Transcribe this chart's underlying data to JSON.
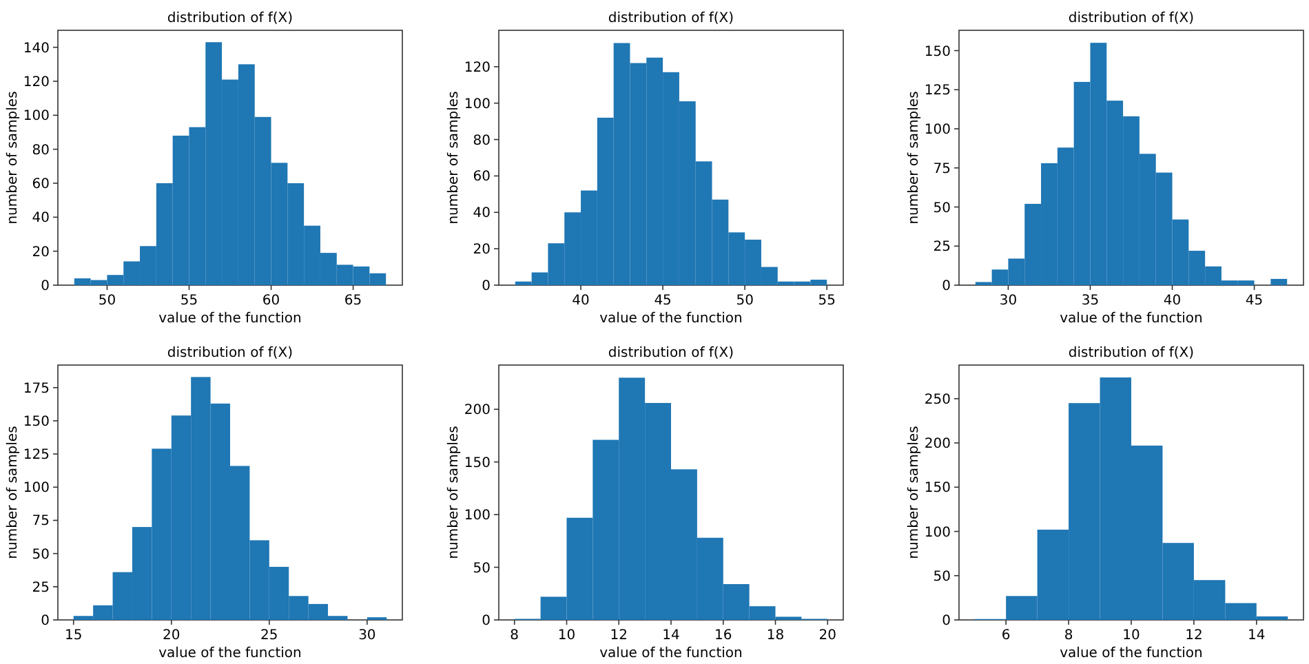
{
  "chart_data": [
    {
      "type": "histogram",
      "title": "distribution of f(X)",
      "xlabel": "value of the function",
      "ylabel": "number of samples",
      "color": "#1f77b4",
      "bins": [
        48,
        49,
        50,
        51,
        52,
        53,
        54,
        55,
        56,
        57,
        58,
        59,
        60,
        61,
        62,
        63,
        64,
        65,
        66,
        67
      ],
      "values": [
        4,
        3,
        6,
        14,
        23,
        60,
        88,
        93,
        143,
        121,
        130,
        99,
        72,
        60,
        35,
        19,
        12,
        11,
        7
      ],
      "xlim": [
        47,
        68
      ],
      "xticks": [
        50,
        55,
        60,
        65
      ],
      "ylim": [
        0,
        150
      ],
      "yticks": [
        0,
        20,
        40,
        60,
        80,
        100,
        120,
        140
      ]
    },
    {
      "type": "histogram",
      "title": "distribution of f(X)",
      "xlabel": "value of the function",
      "ylabel": "number of samples",
      "color": "#1f77b4",
      "bins": [
        36,
        37,
        38,
        39,
        40,
        41,
        42,
        43,
        44,
        45,
        46,
        47,
        48,
        49,
        50,
        51,
        52,
        53,
        54,
        55
      ],
      "values": [
        2,
        7,
        23,
        40,
        52,
        92,
        133,
        122,
        125,
        117,
        101,
        68,
        47,
        29,
        25,
        10,
        2,
        2,
        3
      ],
      "xlim": [
        35,
        56
      ],
      "xticks": [
        40,
        45,
        50,
        55
      ],
      "ylim": [
        0,
        140
      ],
      "yticks": [
        0,
        20,
        40,
        60,
        80,
        100,
        120
      ]
    },
    {
      "type": "histogram",
      "title": "distribution of f(X)",
      "xlabel": "value of the function",
      "ylabel": "number of samples",
      "color": "#1f77b4",
      "bins": [
        28,
        29,
        30,
        31,
        32,
        33,
        34,
        35,
        36,
        37,
        38,
        39,
        40,
        41,
        42,
        43,
        44,
        45,
        46,
        47
      ],
      "values": [
        2,
        10,
        17,
        52,
        78,
        88,
        130,
        155,
        118,
        108,
        84,
        72,
        42,
        22,
        12,
        3,
        3,
        0,
        4
      ],
      "xlim": [
        27,
        48
      ],
      "xticks": [
        30,
        35,
        40,
        45
      ],
      "ylim": [
        0,
        163
      ],
      "yticks": [
        0,
        25,
        50,
        75,
        100,
        125,
        150
      ]
    },
    {
      "type": "histogram",
      "title": "distribution of f(X)",
      "xlabel": "value of the function",
      "ylabel": "number of samples",
      "color": "#1f77b4",
      "bins": [
        15,
        16,
        17,
        18,
        19,
        20,
        21,
        22,
        23,
        24,
        25,
        26,
        27,
        28,
        29,
        30,
        31
      ],
      "values": [
        3,
        11,
        36,
        70,
        129,
        154,
        183,
        163,
        116,
        60,
        40,
        18,
        12,
        3,
        0,
        2
      ],
      "xlim": [
        14.2,
        31.8
      ],
      "xticks": [
        15,
        20,
        25,
        30
      ],
      "ylim": [
        0,
        192
      ],
      "yticks": [
        0,
        25,
        50,
        75,
        100,
        125,
        150,
        175
      ]
    },
    {
      "type": "histogram",
      "title": "distribution of f(X)",
      "xlabel": "value of the function",
      "ylabel": "number of samples",
      "color": "#1f77b4",
      "bins": [
        8,
        9,
        10,
        11,
        12,
        13,
        14,
        15,
        16,
        17,
        18,
        19,
        20
      ],
      "values": [
        1,
        22,
        97,
        171,
        230,
        206,
        143,
        78,
        34,
        13,
        3,
        1
      ],
      "xlim": [
        7.4,
        20.6
      ],
      "xticks": [
        8,
        10,
        12,
        14,
        16,
        18,
        20
      ],
      "ylim": [
        0,
        242
      ],
      "yticks": [
        0,
        50,
        100,
        150,
        200
      ]
    },
    {
      "type": "histogram",
      "title": "distribution of f(X)",
      "xlabel": "value of the function",
      "ylabel": "number of samples",
      "color": "#1f77b4",
      "bins": [
        5,
        6,
        7,
        8,
        9,
        10,
        11,
        12,
        13,
        14,
        15
      ],
      "values": [
        1,
        27,
        102,
        245,
        274,
        197,
        87,
        45,
        19,
        4
      ],
      "xlim": [
        4.5,
        15.5
      ],
      "xticks": [
        6,
        8,
        10,
        12,
        14
      ],
      "ylim": [
        0,
        288
      ],
      "yticks": [
        0,
        50,
        100,
        150,
        200,
        250
      ]
    }
  ]
}
